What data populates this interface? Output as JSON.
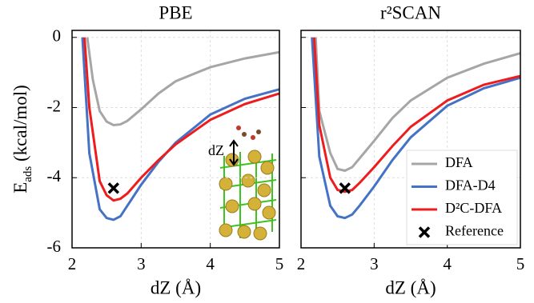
{
  "chart_data": [
    {
      "type": "line",
      "title": "PBE",
      "xlabel": "dZ (Å)",
      "ylabel": [
        "E",
        "ads",
        " (kcal/mol)"
      ],
      "inset_label": "dZ",
      "xlim": [
        2,
        5
      ],
      "ylim": [
        -6,
        0.2
      ],
      "xticks": [
        2,
        3,
        4,
        5
      ],
      "yticks": [
        -6,
        -4,
        -2,
        0
      ],
      "grid": true,
      "show_ytick_labels": true,
      "legend": false,
      "series": [
        {
          "color": "#a6a6a6",
          "x": [
            2.22,
            2.3,
            2.4,
            2.5,
            2.6,
            2.7,
            2.8,
            3.0,
            3.25,
            3.5,
            4.0,
            4.5,
            5.0
          ],
          "values": [
            0,
            -1.2,
            -2.1,
            -2.4,
            -2.5,
            -2.48,
            -2.38,
            -2.05,
            -1.6,
            -1.25,
            -0.85,
            -0.6,
            -0.42
          ]
        },
        {
          "color": "#4472c4",
          "x": [
            2.15,
            2.25,
            2.4,
            2.5,
            2.6,
            2.7,
            2.8,
            3.0,
            3.25,
            3.5,
            4.0,
            4.5,
            5.0
          ],
          "values": [
            0,
            -3.3,
            -4.9,
            -5.15,
            -5.2,
            -5.1,
            -4.8,
            -4.2,
            -3.55,
            -3.0,
            -2.2,
            -1.75,
            -1.48
          ]
        },
        {
          "color": "#ee1c1c",
          "x": [
            2.18,
            2.25,
            2.4,
            2.5,
            2.6,
            2.7,
            2.8,
            3.0,
            3.25,
            3.5,
            4.0,
            4.5,
            5.0
          ],
          "values": [
            0,
            -2.0,
            -4.1,
            -4.5,
            -4.65,
            -4.6,
            -4.45,
            -4.0,
            -3.5,
            -3.05,
            -2.35,
            -1.9,
            -1.6
          ]
        },
        {
          "color": "#000000",
          "marker": "x",
          "x": [
            2.6
          ],
          "values": [
            -4.3
          ]
        }
      ]
    },
    {
      "type": "line",
      "title": "r²SCAN",
      "xlabel": "dZ (Å)",
      "xlim": [
        2,
        5
      ],
      "ylim": [
        -6,
        0.2
      ],
      "xticks": [
        2,
        3,
        4,
        5
      ],
      "yticks": [
        -6,
        -4,
        -2,
        0
      ],
      "grid": true,
      "show_ytick_labels": false,
      "legend": "lower right",
      "series": [
        {
          "name": "DFA",
          "color": "#a6a6a6",
          "x": [
            2.2,
            2.25,
            2.4,
            2.5,
            2.6,
            2.7,
            2.8,
            3.0,
            3.25,
            3.5,
            4.0,
            4.5,
            5.0
          ],
          "values": [
            0,
            -2.1,
            -3.3,
            -3.75,
            -3.8,
            -3.7,
            -3.45,
            -2.95,
            -2.3,
            -1.8,
            -1.15,
            -0.75,
            -0.45
          ]
        },
        {
          "name": "DFA-D4",
          "color": "#4472c4",
          "x": [
            2.15,
            2.25,
            2.4,
            2.5,
            2.6,
            2.7,
            2.8,
            3.0,
            3.25,
            3.5,
            4.0,
            4.5,
            5.0
          ],
          "values": [
            0,
            -3.4,
            -4.8,
            -5.1,
            -5.15,
            -5.05,
            -4.8,
            -4.25,
            -3.5,
            -2.85,
            -1.95,
            -1.45,
            -1.15
          ]
        },
        {
          "name": "D²C-DFA",
          "color": "#ee1c1c",
          "x": [
            2.18,
            2.25,
            2.4,
            2.5,
            2.6,
            2.7,
            2.8,
            3.0,
            3.25,
            3.5,
            4.0,
            4.5,
            5.0
          ],
          "values": [
            0,
            -2.5,
            -4.0,
            -4.35,
            -4.4,
            -4.35,
            -4.15,
            -3.7,
            -3.1,
            -2.55,
            -1.8,
            -1.35,
            -1.1
          ]
        },
        {
          "name": "Reference",
          "color": "#000000",
          "marker": "x",
          "x": [
            2.6
          ],
          "values": [
            -4.3
          ]
        }
      ]
    }
  ]
}
